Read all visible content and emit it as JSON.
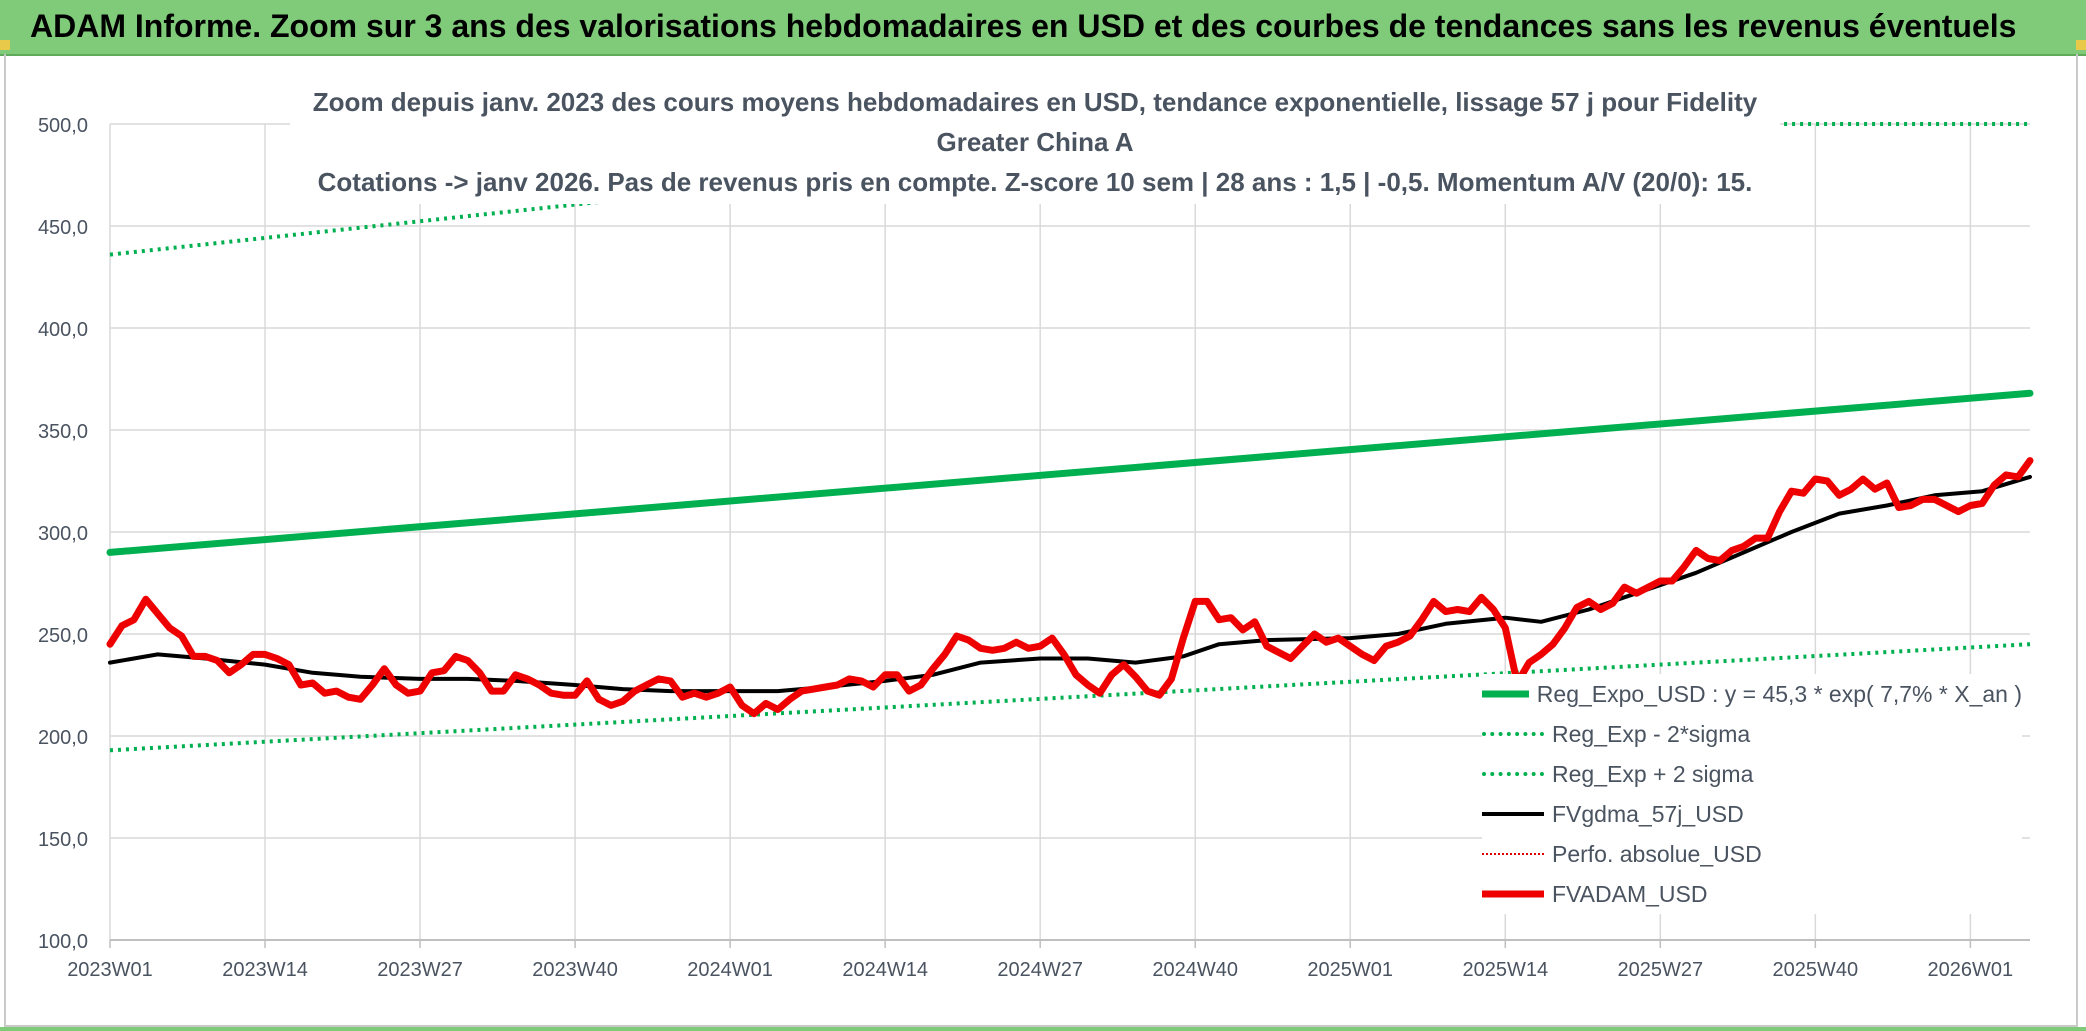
{
  "banner": {
    "title": "ADAM Informe. Zoom sur 3 ans des valorisations hebdomadaires en USD et des courbes de tendances sans les revenus éventuels"
  },
  "chart_data": {
    "type": "line",
    "title_line1": "Zoom depuis janv. 2023 des cours moyens hebdomadaires en USD, tendance exponentielle, lissage 57 j pour Fidelity Greater China A",
    "title_line2": "Cotations -> janv 2026. Pas de revenus pris en compte. Z-score 10 sem | 28 ans : 1,5 | -0,5. Momentum A/V (20/0): 15.",
    "ylim": [
      100,
      500
    ],
    "y_ticks": [
      "100,0",
      "150,0",
      "200,0",
      "250,0",
      "300,0",
      "350,0",
      "400,0",
      "450,0",
      "500,0"
    ],
    "y_tick_values": [
      100,
      150,
      200,
      250,
      300,
      350,
      400,
      450,
      500
    ],
    "x_ticks": [
      "2023W01",
      "2023W14",
      "2023W27",
      "2023W40",
      "2024W01",
      "2024W14",
      "2024W27",
      "2024W40",
      "2025W01",
      "2025W14",
      "2025W27",
      "2025W40",
      "2026W01"
    ],
    "x_tick_index": [
      0,
      13,
      26,
      39,
      52,
      65,
      78,
      91,
      104,
      117,
      130,
      143,
      156
    ],
    "n_weeks": 162,
    "grid": true,
    "legend_position": "bottom-right",
    "series": [
      {
        "name": "Reg_Expo_USD : y = 45,3 * exp( 7,7% *  X_an )",
        "color": "#00b050",
        "style": "solid-thick",
        "points": [
          [
            0,
            290
          ],
          [
            161,
            368
          ]
        ]
      },
      {
        "name": "Reg_Exp - 2*sigma",
        "color": "#00b050",
        "style": "dotted",
        "points": [
          [
            0,
            193
          ],
          [
            161,
            245
          ]
        ]
      },
      {
        "name": "Reg_Exp + 2 sigma",
        "color": "#00b050",
        "style": "dotted",
        "points": [
          [
            0,
            436
          ],
          [
            70,
            480
          ],
          [
            133,
            500
          ],
          [
            161,
            500
          ]
        ]
      },
      {
        "name": "FVgdma_57j_USD",
        "color": "#000000",
        "style": "solid",
        "points": [
          [
            0,
            236
          ],
          [
            4,
            240
          ],
          [
            8,
            238
          ],
          [
            13,
            235
          ],
          [
            17,
            231
          ],
          [
            21,
            229
          ],
          [
            26,
            228
          ],
          [
            30,
            228
          ],
          [
            34,
            227
          ],
          [
            39,
            225
          ],
          [
            43,
            223
          ],
          [
            47,
            222
          ],
          [
            52,
            222
          ],
          [
            56,
            222
          ],
          [
            60,
            224
          ],
          [
            65,
            227
          ],
          [
            69,
            230
          ],
          [
            73,
            236
          ],
          [
            78,
            238
          ],
          [
            82,
            238
          ],
          [
            86,
            236
          ],
          [
            90,
            239
          ],
          [
            93,
            245
          ],
          [
            97,
            247
          ],
          [
            104,
            248
          ],
          [
            108,
            250
          ],
          [
            112,
            255
          ],
          [
            117,
            258
          ],
          [
            120,
            256
          ],
          [
            124,
            262
          ],
          [
            128,
            270
          ],
          [
            133,
            280
          ],
          [
            137,
            290
          ],
          [
            141,
            300
          ],
          [
            145,
            309
          ],
          [
            149,
            313
          ],
          [
            153,
            318
          ],
          [
            157,
            320
          ],
          [
            161,
            327
          ]
        ]
      },
      {
        "name": "Perfo. absolue_USD",
        "color": "#e00000",
        "style": "dotted-thin",
        "points": []
      },
      {
        "name": "FVADAM_USD",
        "color": "#ee0000",
        "style": "solid-thick",
        "points": [
          [
            0,
            245
          ],
          [
            1,
            254
          ],
          [
            2,
            257
          ],
          [
            3,
            267
          ],
          [
            4,
            260
          ],
          [
            5,
            253
          ],
          [
            6,
            249
          ],
          [
            7,
            239
          ],
          [
            8,
            239
          ],
          [
            9,
            237
          ],
          [
            10,
            231
          ],
          [
            11,
            235
          ],
          [
            12,
            240
          ],
          [
            13,
            240
          ],
          [
            14,
            238
          ],
          [
            15,
            235
          ],
          [
            16,
            225
          ],
          [
            17,
            226
          ],
          [
            18,
            221
          ],
          [
            19,
            222
          ],
          [
            20,
            219
          ],
          [
            21,
            218
          ],
          [
            22,
            225
          ],
          [
            23,
            233
          ],
          [
            24,
            225
          ],
          [
            25,
            221
          ],
          [
            26,
            222
          ],
          [
            27,
            231
          ],
          [
            28,
            232
          ],
          [
            29,
            239
          ],
          [
            30,
            237
          ],
          [
            31,
            231
          ],
          [
            32,
            222
          ],
          [
            33,
            222
          ],
          [
            34,
            230
          ],
          [
            35,
            228
          ],
          [
            36,
            225
          ],
          [
            37,
            221
          ],
          [
            38,
            220
          ],
          [
            39,
            220
          ],
          [
            40,
            227
          ],
          [
            41,
            218
          ],
          [
            42,
            215
          ],
          [
            43,
            217
          ],
          [
            44,
            222
          ],
          [
            45,
            225
          ],
          [
            46,
            228
          ],
          [
            47,
            227
          ],
          [
            48,
            219
          ],
          [
            49,
            221
          ],
          [
            50,
            219
          ],
          [
            51,
            221
          ],
          [
            52,
            224
          ],
          [
            53,
            215
          ],
          [
            54,
            211
          ],
          [
            55,
            216
          ],
          [
            56,
            213
          ],
          [
            57,
            218
          ],
          [
            58,
            222
          ],
          [
            59,
            223
          ],
          [
            60,
            224
          ],
          [
            61,
            225
          ],
          [
            62,
            228
          ],
          [
            63,
            227
          ],
          [
            64,
            224
          ],
          [
            65,
            230
          ],
          [
            66,
            230
          ],
          [
            67,
            222
          ],
          [
            68,
            225
          ],
          [
            69,
            233
          ],
          [
            70,
            240
          ],
          [
            71,
            249
          ],
          [
            72,
            247
          ],
          [
            73,
            243
          ],
          [
            74,
            242
          ],
          [
            75,
            243
          ],
          [
            76,
            246
          ],
          [
            77,
            243
          ],
          [
            78,
            244
          ],
          [
            79,
            248
          ],
          [
            80,
            240
          ],
          [
            81,
            230
          ],
          [
            82,
            225
          ],
          [
            83,
            221
          ],
          [
            84,
            230
          ],
          [
            85,
            235
          ],
          [
            86,
            229
          ],
          [
            87,
            222
          ],
          [
            88,
            220
          ],
          [
            89,
            228
          ],
          [
            90,
            248
          ],
          [
            91,
            266
          ],
          [
            92,
            266
          ],
          [
            93,
            257
          ],
          [
            94,
            258
          ],
          [
            95,
            252
          ],
          [
            96,
            256
          ],
          [
            97,
            244
          ],
          [
            98,
            241
          ],
          [
            99,
            238
          ],
          [
            100,
            244
          ],
          [
            101,
            250
          ],
          [
            102,
            246
          ],
          [
            103,
            248
          ],
          [
            104,
            244
          ],
          [
            105,
            240
          ],
          [
            106,
            237
          ],
          [
            107,
            244
          ],
          [
            108,
            246
          ],
          [
            109,
            249
          ],
          [
            110,
            257
          ],
          [
            111,
            266
          ],
          [
            112,
            261
          ],
          [
            113,
            262
          ],
          [
            114,
            261
          ],
          [
            115,
            268
          ],
          [
            116,
            262
          ],
          [
            117,
            253
          ],
          [
            118,
            226
          ],
          [
            119,
            236
          ],
          [
            120,
            240
          ],
          [
            121,
            245
          ],
          [
            122,
            253
          ],
          [
            123,
            263
          ],
          [
            124,
            266
          ],
          [
            125,
            262
          ],
          [
            126,
            265
          ],
          [
            127,
            273
          ],
          [
            128,
            270
          ],
          [
            129,
            273
          ],
          [
            130,
            276
          ],
          [
            131,
            276
          ],
          [
            132,
            283
          ],
          [
            133,
            291
          ],
          [
            134,
            287
          ],
          [
            135,
            286
          ],
          [
            136,
            291
          ],
          [
            137,
            293
          ],
          [
            138,
            297
          ],
          [
            139,
            297
          ],
          [
            140,
            310
          ],
          [
            141,
            320
          ],
          [
            142,
            319
          ],
          [
            143,
            326
          ],
          [
            144,
            325
          ],
          [
            145,
            318
          ],
          [
            146,
            321
          ],
          [
            147,
            326
          ],
          [
            148,
            321
          ],
          [
            149,
            324
          ],
          [
            150,
            312
          ],
          [
            151,
            313
          ],
          [
            152,
            316
          ],
          [
            153,
            316
          ],
          [
            154,
            313
          ],
          [
            155,
            310
          ],
          [
            156,
            313
          ],
          [
            157,
            314
          ],
          [
            158,
            323
          ],
          [
            159,
            328
          ],
          [
            160,
            327
          ],
          [
            161,
            335
          ]
        ]
      }
    ]
  },
  "legend": {
    "items": [
      {
        "label": "Reg_Expo_USD : y = 45,3 * exp( 7,7% *  X_an )",
        "color": "#00b050",
        "style": "solid-thick"
      },
      {
        "label": "Reg_Exp - 2*sigma",
        "color": "#00b050",
        "style": "dotted"
      },
      {
        "label": "Reg_Exp + 2 sigma",
        "color": "#00b050",
        "style": "dotted"
      },
      {
        "label": "FVgdma_57j_USD",
        "color": "#000000",
        "style": "solid"
      },
      {
        "label": "Perfo. absolue_USD",
        "color": "#e00000",
        "style": "dotted-thin"
      },
      {
        "label": "FVADAM_USD",
        "color": "#ee0000",
        "style": "solid-thick"
      }
    ]
  }
}
